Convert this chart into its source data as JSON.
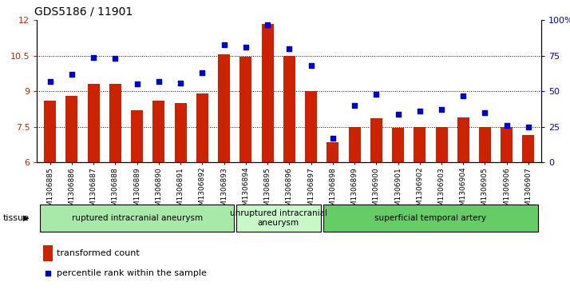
{
  "title": "GDS5186 / 11901",
  "samples": [
    "GSM1306885",
    "GSM1306886",
    "GSM1306887",
    "GSM1306888",
    "GSM1306889",
    "GSM1306890",
    "GSM1306891",
    "GSM1306892",
    "GSM1306893",
    "GSM1306894",
    "GSM1306895",
    "GSM1306896",
    "GSM1306897",
    "GSM1306898",
    "GSM1306899",
    "GSM1306900",
    "GSM1306901",
    "GSM1306902",
    "GSM1306903",
    "GSM1306904",
    "GSM1306905",
    "GSM1306906",
    "GSM1306907"
  ],
  "bar_values": [
    8.6,
    8.8,
    9.3,
    9.3,
    8.2,
    8.6,
    8.5,
    8.9,
    10.55,
    10.45,
    11.85,
    10.5,
    9.0,
    6.85,
    7.5,
    7.85,
    7.45,
    7.5,
    7.5,
    7.9,
    7.5,
    7.5,
    7.15
  ],
  "percentile_values": [
    57,
    62,
    74,
    73,
    55,
    57,
    56,
    63,
    83,
    81,
    97,
    80,
    68,
    17,
    40,
    48,
    34,
    36,
    37,
    47,
    35,
    26,
    25
  ],
  "ylim_left": [
    6,
    12
  ],
  "ylim_right": [
    0,
    100
  ],
  "yticks_left": [
    6,
    7.5,
    9,
    10.5,
    12
  ],
  "yticks_right": [
    0,
    25,
    50,
    75,
    100
  ],
  "bar_color": "#cc2200",
  "dot_color": "#0000cc",
  "groups": [
    {
      "label": "ruptured intracranial aneurysm",
      "start": 0,
      "end": 8,
      "color": "#a8e8a8"
    },
    {
      "label": "unruptured intracranial\naneurysm",
      "start": 9,
      "end": 12,
      "color": "#c8f8c8"
    },
    {
      "label": "superficial temporal artery",
      "start": 13,
      "end": 22,
      "color": "#66cc66"
    }
  ],
  "tissue_label": "tissue",
  "legend_bar_label": "transformed count",
  "legend_dot_label": "percentile rank within the sample",
  "background_color": "#ffffff",
  "title_fontsize": 10,
  "tick_fontsize": 6.5,
  "grid_yticks": [
    7.5,
    9.0,
    10.5
  ]
}
